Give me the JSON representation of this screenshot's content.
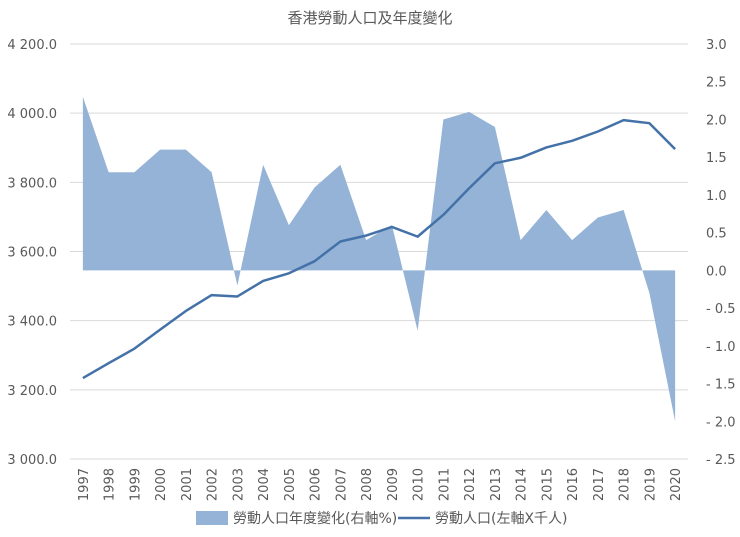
{
  "chart_data": {
    "type": "area",
    "title": "香港勞動人口及年度變化",
    "categories": [
      "1997",
      "1998",
      "1999",
      "2000",
      "2001",
      "2002",
      "2003",
      "2004",
      "2005",
      "2006",
      "2007",
      "2008",
      "2009",
      "2010",
      "2011",
      "2012",
      "2013",
      "2014",
      "2015",
      "2016",
      "2017",
      "2018",
      "2019",
      "2020"
    ],
    "left_axis": {
      "ylim": [
        3000,
        4200
      ],
      "ticks": [
        3000,
        3200,
        3400,
        3600,
        3800,
        4000,
        4200
      ],
      "tick_labels": [
        "3 000.0",
        "3 200.0",
        "3 400.0",
        "3 600.0",
        "3 800.0",
        "4 000.0",
        "4 200.0"
      ]
    },
    "right_axis": {
      "ylim": [
        -2.5,
        3.0
      ],
      "ticks": [
        -2.5,
        -2.0,
        -1.5,
        -1.0,
        -0.5,
        0.0,
        0.5,
        1.0,
        1.5,
        2.0,
        2.5,
        3.0
      ],
      "tick_labels": [
        "- 2.5",
        "- 2.0",
        "- 1.5",
        "- 1.0",
        "- 0.5",
        "0.0",
        "0.5",
        "1.0",
        "1.5",
        "2.0",
        "2.5",
        "3.0"
      ]
    },
    "series": [
      {
        "name": "勞動人口年度變化(右軸%)",
        "type": "area",
        "axis": "right",
        "color": "#95b3d7",
        "values": [
          2.3,
          1.3,
          1.3,
          1.6,
          1.6,
          1.3,
          -0.2,
          1.4,
          0.6,
          1.1,
          1.4,
          0.4,
          0.6,
          -0.8,
          2.0,
          2.1,
          1.9,
          0.4,
          0.8,
          0.4,
          0.7,
          0.8,
          -0.3,
          -2.0
        ]
      },
      {
        "name": "勞動人口(左軸X千人)",
        "type": "line",
        "axis": "left",
        "color": "#4472a8",
        "values": [
          3234,
          3277,
          3319,
          3374,
          3428,
          3474,
          3470,
          3515,
          3537,
          3572,
          3629,
          3646,
          3671,
          3643,
          3706,
          3783,
          3855,
          3871,
          3901,
          3920,
          3947,
          3980,
          3971,
          3896
        ]
      }
    ],
    "grid": true,
    "legend_position": "bottom"
  }
}
